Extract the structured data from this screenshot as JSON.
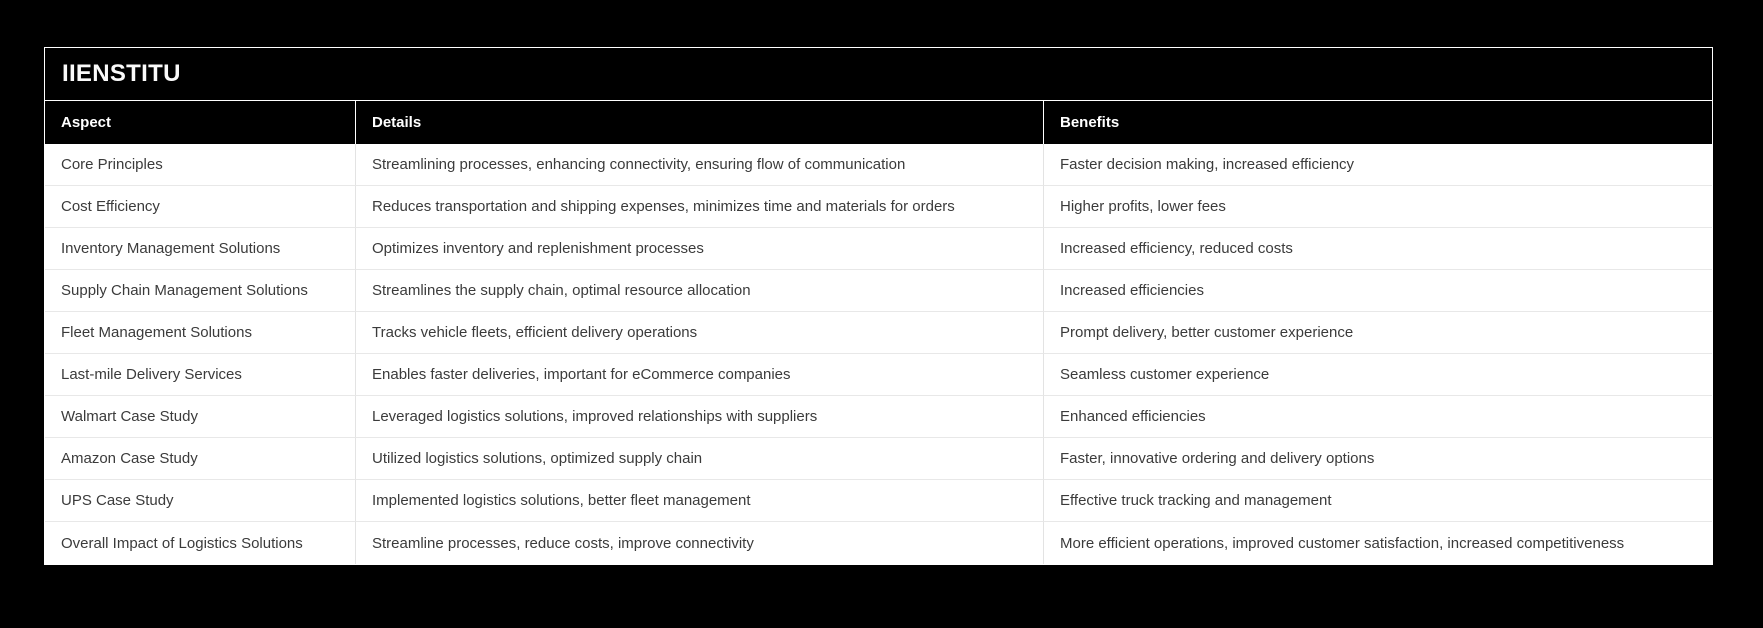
{
  "chart_data": {
    "type": "table",
    "title": "IIENSTITU",
    "columns": [
      "Aspect",
      "Details",
      "Benefits"
    ],
    "rows": [
      [
        "Core Principles",
        "Streamlining processes, enhancing connectivity, ensuring flow of communication",
        "Faster decision making, increased efficiency"
      ],
      [
        "Cost Efficiency",
        "Reduces transportation and shipping expenses, minimizes time and materials for orders",
        "Higher profits, lower fees"
      ],
      [
        "Inventory Management Solutions",
        "Optimizes inventory and replenishment processes",
        "Increased efficiency, reduced costs"
      ],
      [
        "Supply Chain Management Solutions",
        "Streamlines the supply chain, optimal resource allocation",
        "Increased efficiencies"
      ],
      [
        "Fleet Management Solutions",
        "Tracks vehicle fleets, efficient delivery operations",
        "Prompt delivery, better customer experience"
      ],
      [
        "Last-mile Delivery Services",
        "Enables faster deliveries, important for eCommerce companies",
        "Seamless customer experience"
      ],
      [
        "Walmart Case Study",
        "Leveraged logistics solutions, improved relationships with suppliers",
        "Enhanced efficiencies"
      ],
      [
        "Amazon Case Study",
        "Utilized logistics solutions, optimized supply chain",
        "Faster, innovative ordering and delivery options"
      ],
      [
        "UPS Case Study",
        "Implemented logistics solutions, better fleet management",
        "Effective truck tracking and management"
      ],
      [
        "Overall Impact of Logistics Solutions",
        "Streamline processes, reduce costs, improve connectivity",
        "More efficient operations, improved customer satisfaction, increased competitiveness"
      ]
    ],
    "layout": {
      "legend": "none",
      "grid": "cell-borders"
    }
  },
  "colors": {
    "page_background": "#000000",
    "card_border": "#ffffff",
    "title_bar_background": "#000000",
    "title_text": "#fafafa",
    "header_background": "#000000",
    "header_text": "#ffffff",
    "row_background": "#ffffff",
    "body_text": "#3b3b3b",
    "cell_divider": "#e3e3e3"
  }
}
